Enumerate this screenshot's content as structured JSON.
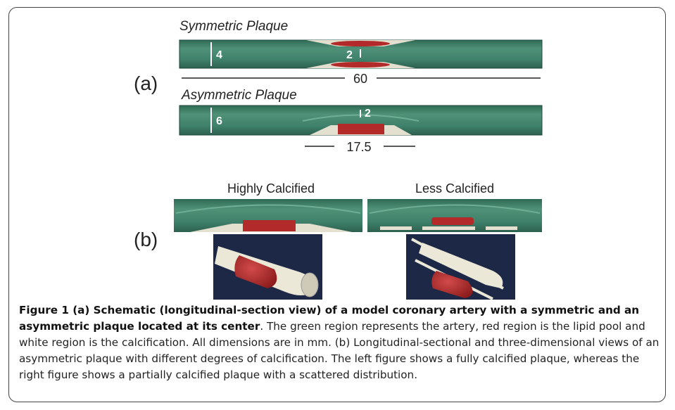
{
  "panel_a": {
    "label": "(a)",
    "symmetric": {
      "title": "Symmetric Plaque",
      "diameter": "4",
      "plaque_height": "2",
      "length": "60"
    },
    "asymmetric": {
      "title": "Asymmetric Plaque",
      "diameter": "6",
      "plaque_height": "2",
      "plaque_length": "17.5"
    }
  },
  "panel_b": {
    "label": "(b)",
    "left_title": "Highly Calcified",
    "right_title": "Less Calcified"
  },
  "caption": {
    "bold": "Figure 1 (a) Schematic (longitudinal-section view) of a model coronary artery with a symmetric and an asymmetric plaque located at its center",
    "text": ". The green region represents the artery, red region is the lipid pool and white region is the calcification. All dimensions are in mm. (b) Longitudinal-sectional and three-dimensional views of an asymmetric plaque with different degrees of calcification. The left figure shows a fully calcified plaque, whereas the right figure shows a partially calcified plaque with a scattered distribution."
  }
}
